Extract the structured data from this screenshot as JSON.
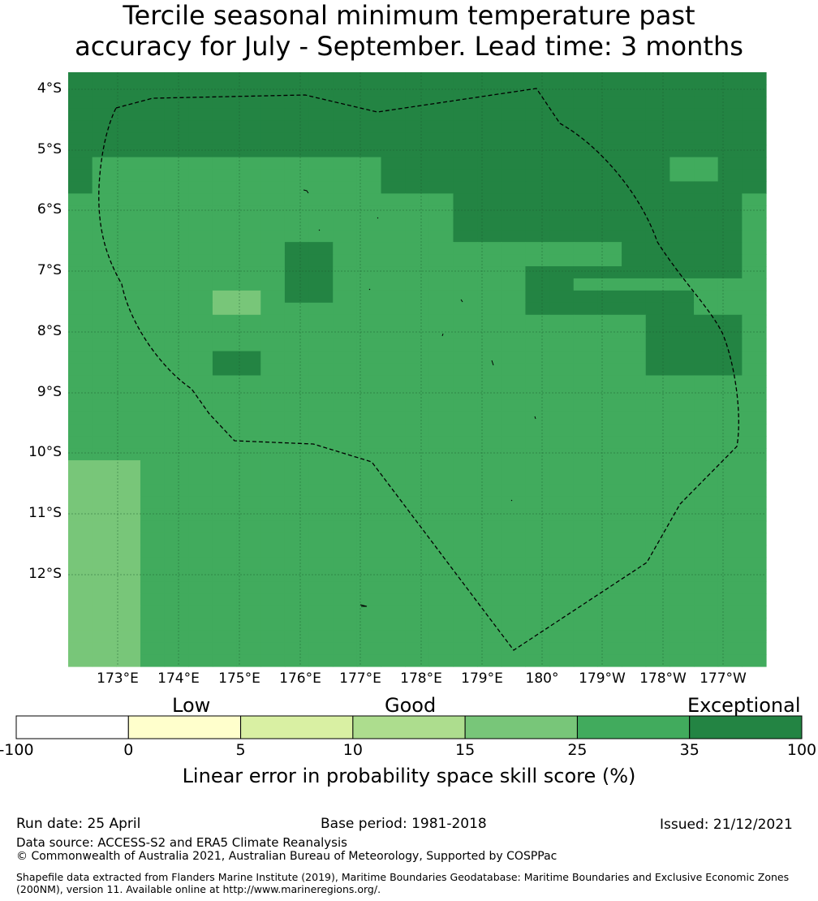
{
  "title_line1": "Tercile seasonal minimum temperature past",
  "title_line2": "accuracy for July - September. Lead time: 3 months",
  "map": {
    "lat_labels": [
      "4°S",
      "5°S",
      "6°S",
      "7°S",
      "8°S",
      "9°S",
      "10°S",
      "11°S",
      "12°S"
    ],
    "lon_labels": [
      "173°E",
      "174°E",
      "175°E",
      "176°E",
      "177°E",
      "178°E",
      "179°E",
      "180°",
      "179°W",
      "178°W",
      "177°W"
    ],
    "grid_rows": [
      "EEEEEEEEEEEEEEEEEEEEEEEEEEEEE",
      "EEEEEEEEEEEEEEEEEEEEEEEEEEEEE",
      "EEEEEEEEEEEEEEEEEEEEEEEEEEEEE",
      "EEEEEEEEEEEEEEEEEEEEEEEEEEEEE",
      "EEEEEEEEEEEEEEEEEEEEEEEEEEEEE",
      "EEEEEEEEEEEEEEEEEEEEEEEEEEEEE",
      "EEEEEEEEEEEEEEEEEEEEEEEEEEEEE",
      "EGGGGGGGGGGGGEEEEEEEEEEEEGGEE",
      "EGGGGGGGGGGGGEEEEEEEEEEEEGGEE",
      "EGGGGGGGGGGGGEEEEEEEEEEEEEEEE",
      "GGGGGGGGGGGGGGGGEEEEEEEEEEEEG",
      "GGGGGGGGGGGGGGGGEEEEEEEEEEEEG",
      "GGGGGGGGGGGGGGGGEEEEEEEEEEEEG",
      "GGGGGGGGGGGGGGGGEEEEEEEEEEEEG",
      "GGGGGGGGGEEGGGGGGGGGGGGEEEEEG",
      "GGGGGGGGGEEGGGGGGGGGGGGEEEEEG",
      "GGGGGGGGGEEGGGGGGGGEEEEEEEEEG",
      "GGGGGGGGGEEGGGGGGGGEEGGGGGGGG",
      "GGGGGGMMGEEGGGGGGGGEEEEEEEGGG",
      "GGGGGGMMGGGGGGGGGGGEEEEEEEGGG",
      "GGGGGGGGGGGGGGGGGGGGGGGGEEEEG",
      "GGGGGGGGGGGGGGGGGGGGGGGGEEEEG",
      "GGGGGGGGGGGGGGGGGGGGGGGGEEEEG",
      "GGGGGGEEGGGGGGGGGGGGGGGGEEEEG",
      "GGGGGGEEGGGGGGGGGGGGGGGGEEEEG",
      "GGGGGGGGGGGGGGGGGGGGGGGGGGGGG",
      "GGGGGGGGGGGGGGGGGGGGGGGGGGGGG",
      "GGGGGGGGGGGGGGGGGGGGGGGGGGGGG",
      "GGGGGGGGGGGGGGGGGGGGGGGGGGGGG",
      "GGGGGGGGGGGGGGGGGGGGGGGGGGGGG",
      "GGGGGGGGGGGGGGGGGGGGGGGGGGGGG",
      "GGGGGGGGGGGGGGGGGGGGGGGGGGGGG",
      "MMMGGGGGGGGGGGGGGGGGGGGGGGGGG",
      "MMMGGGGGGGGGGGGGGGGGGGGGGGGGG",
      "MMMGGGGGGGGGGGGGGGGGGGGGGGGGG",
      "MMMGGGGGGGGGGGGGGGGGGGGGGGGGG",
      "MMMGGGGGGGGGGGGGGGGGGGGGGGGGG",
      "MMMGGGGGGGGGGGGGGGGGGGGGGGGGG",
      "MMMGGGGGGGGGGGGGGGGGGGGGGGGGG",
      "MMMGGGGGGGGGGGGGGGGGGGGGGGGGG",
      "MMMGGGGGGGGGGGGGGGGGGGGGGGGGG",
      "MMMGGGGGGGGGGGGGGGGGGGGGGGGGG",
      "MMMGGGGGGGGGGGGGGGGGGGGGGGGGG",
      "MMMGGGGGGGGGGGGGGGGGGGGGGGGGG",
      "MMMGGGGGGGGGGGGGGGGGGGGGGGGGG",
      "MMMGGGGGGGGGGGGGGGGGGGGGGGGGG",
      "MMMGGGGGGGGGGGGGGGGGGGGGGGGGG",
      "MMMGGGGGGGGGGGGGGGGGGGGGGGGGG",
      "MMMGGGGGGGGGGGGGGGGGGGGGGGGGG"
    ],
    "cell_colors": {
      "E": "#238443",
      "G": "#41ab5d",
      "M": "#78c679"
    },
    "eez_boundary_color": "#000000"
  },
  "colorbar": {
    "category_labels": [
      "Low",
      "Good",
      "Exceptional"
    ],
    "ticks": [
      "-100",
      "0",
      "5",
      "10",
      "15",
      "25",
      "35",
      "100"
    ],
    "colors": [
      "#ffffff",
      "#ffffcc",
      "#d9f0a3",
      "#addd8e",
      "#78c679",
      "#41ab5d",
      "#238443"
    ],
    "title": "Linear error in probability space skill score (%)"
  },
  "footer": {
    "run_date": "Run date: 25 April",
    "base_period": "Base period: 1981-2018",
    "issued": "Issued: 21/12/2021",
    "data_source": "Data source: ACCESS-S2 and ERA5 Climate Reanalysis",
    "copyright": "© Commonwealth of Australia 2021, Australian Bureau of Meteorology, Supported by COSPPac",
    "shapefile": "Shapefile data extracted from Flanders Marine Institute (2019), Maritime Boundaries Geodatabase: Maritime Boundaries and Exclusive Economic Zones (200NM), version 11. Available online at http://www.marineregions.org/."
  }
}
